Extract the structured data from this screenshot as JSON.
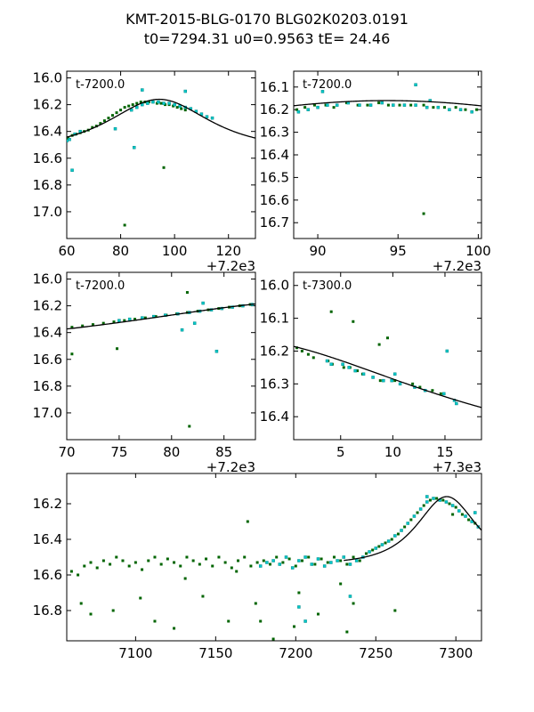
{
  "figure": {
    "title_line1": "KMT-2015-BLG-0170 BLG02K0203.0191",
    "title_line2": "t0=7294.31 u0=0.9563 tE=  24.46"
  },
  "colors": {
    "dark_series": "#006400",
    "cyan_series": "#00c8c8",
    "model_line": "#000000"
  },
  "model": {
    "t0": 7294.31,
    "u0": 0.9563,
    "tE": 24.46,
    "baseline_mag": 16.54,
    "amplitude": 0.38
  },
  "chart_data": [
    {
      "id": "panel1",
      "type": "scatter",
      "annotation": "t-7200.0",
      "xlim": [
        60,
        130
      ],
      "ylim": [
        17.2,
        15.95
      ],
      "y_inverted": true,
      "xticks": [
        60,
        80,
        100,
        120
      ],
      "xtick_labels": [
        "60",
        "80",
        "100",
        "120"
      ],
      "yticks": [
        16.0,
        16.2,
        16.4,
        16.6,
        16.8,
        17.0
      ],
      "ytick_labels": [
        "16.0",
        "16.2",
        "16.4",
        "16.6",
        "16.8",
        "17.0"
      ],
      "offset_label": "+7.2e3",
      "x_offset": 7200,
      "series": [
        {
          "name": "dark",
          "x": [
            60.5,
            62,
            63.5,
            65,
            66.5,
            68,
            69.5,
            71,
            72.5,
            74,
            75.5,
            77,
            78.5,
            80,
            81.5,
            83,
            84.5,
            86,
            87.5,
            89,
            90.5,
            92,
            93.5,
            95,
            96.5,
            98,
            99.5,
            101,
            102.5,
            104,
            96,
            81.5
          ],
          "y": [
            16.45,
            16.43,
            16.42,
            16.41,
            16.4,
            16.39,
            16.37,
            16.36,
            16.34,
            16.32,
            16.3,
            16.28,
            16.26,
            16.24,
            16.22,
            16.21,
            16.2,
            16.19,
            16.18,
            16.18,
            16.18,
            16.18,
            16.19,
            16.19,
            16.2,
            16.2,
            16.21,
            16.22,
            16.23,
            16.24,
            16.67,
            17.1
          ]
        },
        {
          "name": "cyan",
          "x": [
            60,
            61,
            63,
            65,
            84,
            86,
            88,
            90,
            92,
            94,
            96,
            98,
            100,
            102,
            104,
            106,
            108,
            110,
            112,
            114,
            62,
            78,
            85,
            88,
            104
          ],
          "y": [
            16.47,
            16.46,
            16.42,
            16.4,
            16.24,
            16.22,
            16.2,
            16.19,
            16.18,
            16.18,
            16.19,
            16.19,
            16.2,
            16.21,
            16.22,
            16.23,
            16.25,
            16.27,
            16.29,
            16.3,
            16.69,
            16.38,
            16.52,
            16.09,
            16.1
          ]
        }
      ],
      "model_range": [
        60,
        130
      ]
    },
    {
      "id": "panel2",
      "type": "scatter",
      "annotation": "t-7200.0",
      "xlim": [
        88.5,
        100.2
      ],
      "ylim": [
        16.77,
        16.03
      ],
      "y_inverted": true,
      "xticks": [
        90,
        95,
        100
      ],
      "xtick_labels": [
        "90",
        "95",
        "100"
      ],
      "yticks": [
        16.1,
        16.2,
        16.3,
        16.4,
        16.5,
        16.6,
        16.7
      ],
      "ytick_labels": [
        "16.1",
        "16.2",
        "16.3",
        "16.4",
        "16.5",
        "16.6",
        "16.7"
      ],
      "offset_label": "+7.2e3",
      "x_offset": 7200,
      "series": [
        {
          "name": "dark",
          "x": [
            88.7,
            89.2,
            89.8,
            90.5,
            91,
            91.8,
            92.5,
            93.1,
            93.8,
            94.4,
            95.1,
            95.8,
            96.6,
            97.2,
            97.9,
            98.6,
            99.2,
            99.9,
            96.6
          ],
          "y": [
            16.2,
            16.19,
            16.18,
            16.18,
            16.19,
            16.17,
            16.18,
            16.18,
            16.17,
            16.18,
            16.18,
            16.18,
            16.18,
            16.19,
            16.19,
            16.19,
            16.2,
            16.2,
            16.66
          ]
        },
        {
          "name": "cyan",
          "x": [
            88.8,
            89.4,
            90,
            90.6,
            91.2,
            91.9,
            92.6,
            93.3,
            94,
            94.7,
            95.4,
            96.1,
            96.8,
            97.5,
            98.2,
            98.9,
            99.6,
            96.1,
            90.3,
            97
          ],
          "y": [
            16.21,
            16.2,
            16.19,
            16.18,
            16.18,
            16.17,
            16.18,
            16.18,
            16.17,
            16.18,
            16.18,
            16.18,
            16.19,
            16.19,
            16.2,
            16.2,
            16.21,
            16.09,
            16.12,
            16.16
          ]
        }
      ],
      "model_range": [
        88.5,
        100.2
      ]
    },
    {
      "id": "panel3",
      "type": "scatter",
      "annotation": "t-7200.0",
      "xlim": [
        70,
        88
      ],
      "ylim": [
        17.2,
        15.95
      ],
      "y_inverted": true,
      "xticks": [
        70,
        75,
        80,
        85
      ],
      "xtick_labels": [
        "70",
        "75",
        "80",
        "85"
      ],
      "yticks": [
        16.0,
        16.2,
        16.4,
        16.6,
        16.8,
        17.0
      ],
      "ytick_labels": [
        "16.0",
        "16.2",
        "16.4",
        "16.6",
        "16.8",
        "17.0"
      ],
      "offset_label": "+7.2e3",
      "x_offset": 7200,
      "series": [
        {
          "name": "dark",
          "x": [
            70.5,
            71.5,
            72.5,
            73.5,
            74.5,
            75.5,
            76.5,
            77.5,
            78.5,
            79.5,
            80.5,
            81.5,
            82.5,
            83.5,
            84.5,
            85.5,
            86.5,
            87.5,
            70.5,
            74.8,
            81.5,
            81.7
          ],
          "y": [
            16.36,
            16.35,
            16.34,
            16.33,
            16.32,
            16.31,
            16.3,
            16.29,
            16.28,
            16.27,
            16.26,
            16.25,
            16.24,
            16.23,
            16.22,
            16.21,
            16.2,
            16.19,
            16.56,
            16.52,
            16.1,
            17.1
          ]
        },
        {
          "name": "cyan",
          "x": [
            75,
            76,
            77.2,
            78.3,
            79.4,
            80.6,
            81.7,
            82.7,
            83.8,
            84.8,
            85.8,
            86.8,
            87.7,
            82.2,
            84.3,
            81,
            83
          ],
          "y": [
            16.31,
            16.3,
            16.29,
            16.28,
            16.27,
            16.26,
            16.25,
            16.24,
            16.23,
            16.22,
            16.21,
            16.2,
            16.19,
            16.33,
            16.54,
            16.38,
            16.18
          ]
        }
      ],
      "model_range": [
        70,
        88
      ]
    },
    {
      "id": "panel4",
      "type": "scatter",
      "annotation": "t-7300.0",
      "xlim": [
        0.5,
        18.5
      ],
      "ylim": [
        16.47,
        15.96
      ],
      "y_inverted": true,
      "xticks": [
        5,
        10,
        15
      ],
      "xtick_labels": [
        "5",
        "10",
        "15"
      ],
      "yticks": [
        16.0,
        16.1,
        16.2,
        16.3,
        16.4
      ],
      "ytick_labels": [
        "16.0",
        "16.1",
        "16.2",
        "16.3",
        "16.4"
      ],
      "offset_label": "+7.3e3",
      "x_offset": 7300,
      "series": [
        {
          "name": "dark",
          "x": [
            0.8,
            1.3,
            1.9,
            2.4,
            3.8,
            4.2,
            5.3,
            5.9,
            6.6,
            7.1,
            8.1,
            8.8,
            10.2,
            11.9,
            12.6,
            13.8,
            14.6,
            4.1,
            6.2,
            8.7,
            9.5
          ],
          "y": [
            16.19,
            16.2,
            16.21,
            16.22,
            16.23,
            16.24,
            16.25,
            16.25,
            16.26,
            16.27,
            16.28,
            16.29,
            16.29,
            16.3,
            16.31,
            16.32,
            16.33,
            16.08,
            16.11,
            16.18,
            16.16
          ]
        },
        {
          "name": "cyan",
          "x": [
            3.7,
            4.1,
            5.2,
            5.8,
            6.4,
            7.2,
            8.1,
            9.1,
            9.9,
            10.7,
            12.1,
            13.1,
            14.9,
            15.9,
            16.1,
            15.2,
            10.2
          ],
          "y": [
            16.23,
            16.24,
            16.24,
            16.25,
            16.26,
            16.27,
            16.28,
            16.29,
            16.29,
            16.3,
            16.31,
            16.32,
            16.33,
            16.35,
            16.36,
            16.2,
            16.27
          ]
        }
      ],
      "model_range": [
        0.5,
        18.5
      ]
    },
    {
      "id": "panel5",
      "type": "scatter",
      "annotation": "",
      "xlim": [
        7057,
        7316
      ],
      "ylim": [
        16.97,
        16.03
      ],
      "y_inverted": true,
      "xticks": [
        7100,
        7150,
        7200,
        7250,
        7300
      ],
      "xtick_labels": [
        "7100",
        "7150",
        "7200",
        "7250",
        "7300"
      ],
      "yticks": [
        16.2,
        16.4,
        16.6,
        16.8
      ],
      "ytick_labels": [
        "16.2",
        "16.4",
        "16.6",
        "16.8"
      ],
      "offset_label": "",
      "x_offset": 0,
      "series": [
        {
          "name": "dark",
          "x": [
            7060,
            7064,
            7068,
            7072,
            7076,
            7080,
            7084,
            7088,
            7092,
            7096,
            7100,
            7104,
            7108,
            7112,
            7116,
            7120,
            7124,
            7128,
            7132,
            7136,
            7140,
            7144,
            7148,
            7152,
            7156,
            7160,
            7164,
            7168,
            7172,
            7176,
            7180,
            7184,
            7188,
            7192,
            7196,
            7200,
            7204,
            7208,
            7212,
            7216,
            7220,
            7224,
            7228,
            7232,
            7236,
            7240,
            7244,
            7248,
            7252,
            7256,
            7260,
            7264,
            7268,
            7272,
            7276,
            7280,
            7284,
            7288,
            7292,
            7296,
            7300,
            7304,
            7308,
            7312,
            7066,
            7072,
            7086,
            7103,
            7124,
            7131,
            7158,
            7163,
            7175,
            7178,
            7186,
            7199,
            7202,
            7214,
            7232,
            7236,
            7262,
            7298,
            7170,
            7228,
            7142,
            7112
          ],
          "y": [
            16.58,
            16.6,
            16.55,
            16.53,
            16.56,
            16.52,
            16.54,
            16.5,
            16.52,
            16.55,
            16.53,
            16.57,
            16.52,
            16.5,
            16.54,
            16.51,
            16.53,
            16.55,
            16.5,
            16.52,
            16.54,
            16.51,
            16.55,
            16.5,
            16.53,
            16.56,
            16.52,
            16.5,
            16.55,
            16.53,
            16.52,
            16.54,
            16.5,
            16.53,
            16.51,
            16.55,
            16.52,
            16.5,
            16.54,
            16.51,
            16.53,
            16.5,
            16.52,
            16.54,
            16.5,
            16.52,
            16.48,
            16.46,
            16.44,
            16.42,
            16.4,
            16.37,
            16.33,
            16.29,
            16.25,
            16.21,
            16.18,
            16.17,
            16.18,
            16.2,
            16.22,
            16.26,
            16.29,
            16.31,
            16.76,
            16.82,
            16.8,
            16.73,
            16.9,
            16.62,
            16.86,
            16.58,
            16.76,
            16.86,
            16.96,
            16.89,
            16.7,
            16.82,
            16.92,
            16.76,
            16.8,
            16.26,
            16.3,
            16.65,
            16.72,
            16.86
          ]
        },
        {
          "name": "cyan",
          "x": [
            7178,
            7182,
            7186,
            7190,
            7194,
            7198,
            7202,
            7206,
            7210,
            7214,
            7218,
            7222,
            7226,
            7230,
            7234,
            7238,
            7242,
            7246,
            7250,
            7254,
            7258,
            7262,
            7266,
            7270,
            7274,
            7278,
            7282,
            7286,
            7290,
            7294,
            7298,
            7302,
            7306,
            7310,
            7314,
            7202,
            7206,
            7234,
            7282,
            7312
          ],
          "y": [
            16.55,
            16.53,
            16.52,
            16.54,
            16.5,
            16.56,
            16.52,
            16.5,
            16.54,
            16.51,
            16.55,
            16.53,
            16.52,
            16.5,
            16.54,
            16.52,
            16.5,
            16.47,
            16.45,
            16.43,
            16.41,
            16.38,
            16.35,
            16.31,
            16.27,
            16.23,
            16.19,
            16.17,
            16.18,
            16.19,
            16.21,
            16.24,
            16.27,
            16.3,
            16.33,
            16.78,
            16.86,
            16.72,
            16.16,
            16.25
          ]
        }
      ],
      "model_range": [
        7230,
        7316
      ]
    }
  ]
}
